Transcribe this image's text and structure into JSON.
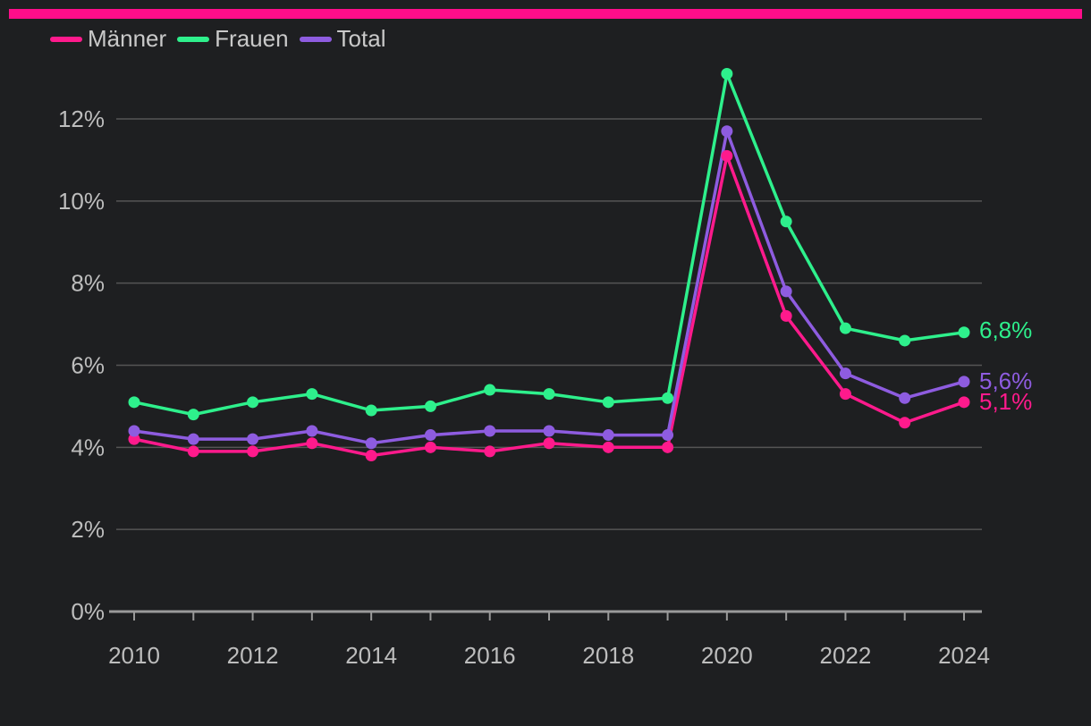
{
  "colors": {
    "accent": "#ff0d8a",
    "background": "#1e1f21",
    "grid": "#555555",
    "axis": "#9a9a9a",
    "tick_text": "#bdbdbd"
  },
  "chart_data": {
    "type": "line",
    "x": [
      2010,
      2011,
      2012,
      2013,
      2014,
      2015,
      2016,
      2017,
      2018,
      2019,
      2020,
      2021,
      2022,
      2023,
      2024
    ],
    "x_ticks": [
      "2010",
      "2012",
      "2014",
      "2016",
      "2018",
      "2020",
      "2022",
      "2024"
    ],
    "y_ticks": [
      "0%",
      "2%",
      "4%",
      "6%",
      "8%",
      "10%",
      "12%"
    ],
    "ylim": [
      0,
      13
    ],
    "grid": true,
    "legend_position": "top-left",
    "series": [
      {
        "name": "Männer",
        "color": "#ff1a8c",
        "end_label": "5,1%",
        "values": [
          4.2,
          3.9,
          3.9,
          4.1,
          3.8,
          4.0,
          3.9,
          4.1,
          4.0,
          4.0,
          11.1,
          7.2,
          5.3,
          4.6,
          5.1
        ]
      },
      {
        "name": "Frauen",
        "color": "#2ef08c",
        "end_label": "6,8%",
        "values": [
          5.1,
          4.8,
          5.1,
          5.3,
          4.9,
          5.0,
          5.4,
          5.3,
          5.1,
          5.2,
          13.1,
          9.5,
          6.9,
          6.6,
          6.8
        ]
      },
      {
        "name": "Total",
        "color": "#8e5ce0",
        "end_label": "5,6%",
        "values": [
          4.4,
          4.2,
          4.2,
          4.4,
          4.1,
          4.3,
          4.4,
          4.4,
          4.3,
          4.3,
          11.7,
          7.8,
          5.8,
          5.2,
          5.6
        ]
      }
    ]
  }
}
